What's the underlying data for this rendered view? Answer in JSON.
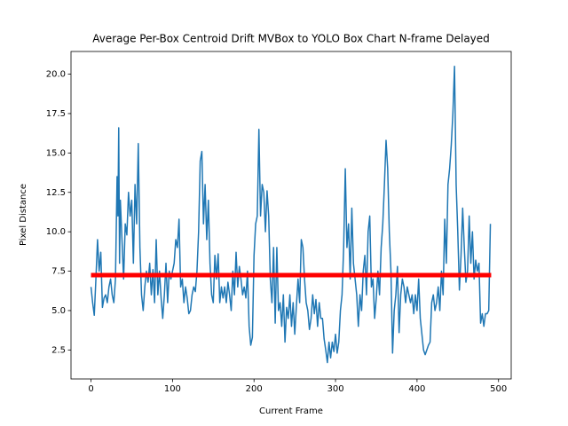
{
  "chart_data": {
    "type": "line",
    "title": "Average Per-Box Centroid Drift MVBox to YOLO Box Chart N-frame Delayed",
    "x_label": "Current Frame",
    "y_label": "Pixel Distance",
    "x": [
      0,
      2,
      4,
      6,
      8,
      10,
      12,
      14,
      16,
      18,
      20,
      22,
      24,
      26,
      28,
      30,
      32,
      33,
      34,
      35,
      36,
      38,
      40,
      42,
      44,
      46,
      48,
      50,
      52,
      54,
      56,
      58,
      60,
      62,
      64,
      66,
      68,
      70,
      72,
      74,
      76,
      78,
      80,
      82,
      84,
      86,
      88,
      90,
      92,
      94,
      96,
      98,
      100,
      102,
      104,
      106,
      108,
      110,
      112,
      114,
      116,
      118,
      120,
      122,
      124,
      126,
      128,
      130,
      132,
      134,
      136,
      138,
      140,
      142,
      144,
      146,
      148,
      150,
      152,
      154,
      156,
      158,
      160,
      162,
      164,
      166,
      168,
      170,
      172,
      174,
      176,
      178,
      180,
      182,
      184,
      186,
      188,
      190,
      192,
      194,
      196,
      198,
      200,
      202,
      204,
      206,
      208,
      210,
      212,
      214,
      216,
      218,
      220,
      222,
      224,
      226,
      228,
      230,
      232,
      234,
      236,
      238,
      240,
      242,
      244,
      246,
      248,
      250,
      252,
      254,
      256,
      258,
      260,
      262,
      264,
      266,
      268,
      270,
      272,
      274,
      276,
      278,
      280,
      282,
      284,
      286,
      288,
      290,
      292,
      294,
      296,
      298,
      300,
      302,
      304,
      306,
      308,
      310,
      312,
      314,
      316,
      318,
      320,
      322,
      324,
      326,
      328,
      330,
      332,
      334,
      336,
      338,
      340,
      342,
      344,
      346,
      348,
      350,
      352,
      354,
      356,
      358,
      360,
      362,
      364,
      366,
      368,
      370,
      372,
      374,
      376,
      378,
      380,
      382,
      384,
      386,
      388,
      390,
      392,
      394,
      396,
      398,
      400,
      402,
      404,
      406,
      408,
      410,
      412,
      414,
      416,
      418,
      420,
      422,
      424,
      426,
      428,
      430,
      432,
      434,
      436,
      438,
      440,
      442,
      444,
      446,
      448,
      450,
      452,
      454,
      456,
      458,
      460,
      462,
      464,
      466,
      468,
      470,
      472,
      474,
      476,
      478,
      480,
      482,
      484,
      486,
      488,
      490
    ],
    "series": [
      {
        "color": "#1f77b4",
        "width": 1.5,
        "values": [
          6.5,
          5.5,
          4.7,
          7,
          9.5,
          7.5,
          8.7,
          5.2,
          5.8,
          6,
          5.5,
          6.5,
          7,
          6,
          5.5,
          7,
          13.5,
          11,
          16.6,
          8,
          12,
          9.5,
          7,
          10.5,
          9.8,
          12.5,
          11,
          12,
          8,
          13,
          10.5,
          15.6,
          9,
          6,
          5,
          6.5,
          7.5,
          6.8,
          8,
          6,
          7.6,
          5.5,
          9.5,
          6,
          7.5,
          5.8,
          4.5,
          6,
          8,
          5.5,
          7.5,
          7,
          7.5,
          8,
          9.5,
          9,
          10.8,
          6.5,
          7,
          5.5,
          6.5,
          5.8,
          4.8,
          5,
          6,
          6.5,
          6.2,
          7.5,
          10,
          14.5,
          15.1,
          10.5,
          13,
          9.5,
          12,
          8,
          6,
          5.5,
          8.5,
          7,
          8.6,
          5.5,
          6.5,
          5.8,
          6.5,
          5.5,
          6.8,
          6,
          5,
          7.5,
          6,
          8.7,
          6.5,
          7.8,
          7,
          6,
          6.5,
          5.8,
          7.5,
          4,
          2.8,
          3.3,
          8.5,
          10.5,
          11,
          16.5,
          11,
          13,
          12.5,
          10,
          12.6,
          11,
          7,
          5.5,
          9,
          4.2,
          9,
          5,
          5.5,
          4,
          6,
          3,
          5.2,
          4.5,
          6,
          4,
          5.5,
          3.5,
          5.3,
          7,
          5.5,
          9.5,
          9,
          7,
          5.5,
          5,
          3.8,
          4.5,
          6,
          4.8,
          5.7,
          4,
          5.5,
          4.5,
          4.5,
          3.2,
          2.5,
          1.7,
          3,
          2,
          3,
          2.4,
          3.5,
          2.3,
          3,
          5,
          6,
          9,
          14,
          9,
          10.5,
          7,
          11.5,
          8,
          7,
          6,
          4,
          6,
          5,
          7.5,
          8.5,
          6,
          10,
          11,
          6.5,
          7,
          4.5,
          5.8,
          7.5,
          6,
          9,
          10.5,
          13,
          15.8,
          14,
          10,
          7.5,
          2.3,
          5,
          6,
          7.8,
          3.6,
          6,
          7,
          6.5,
          5.5,
          6.5,
          6,
          5.5,
          6,
          4.8,
          6,
          5,
          7,
          4.5,
          3.5,
          2.5,
          2.2,
          2.5,
          2.8,
          3,
          5.5,
          6,
          5,
          5.5,
          6.5,
          5,
          7.5,
          6,
          10.8,
          8,
          13,
          14,
          15.5,
          17.5,
          20.5,
          13,
          10,
          6.3,
          8.5,
          11.5,
          9,
          6.8,
          7.5,
          11,
          8,
          10,
          7,
          8.2,
          7.5,
          8,
          4.2,
          4.8,
          4,
          4.8,
          4.8,
          5,
          10.5
        ]
      },
      {
        "color": "#ff0000",
        "width": 5,
        "x": [
          0,
          491
        ],
        "values": [
          7.25,
          7.25
        ]
      }
    ],
    "xlim": [
      -24.55,
      515.55
    ],
    "xticks": [
      0,
      100,
      200,
      300,
      400,
      500
    ],
    "ylim": [
      0.66,
      21.44
    ],
    "yticks": [
      2.5,
      {
        "value": 5,
        "label": "5.0"
      },
      7.5,
      {
        "value": 10,
        "label": "10.0"
      },
      12.5,
      {
        "value": 15,
        "label": "15.0"
      },
      17.5,
      {
        "value": 20,
        "label": "20.0"
      }
    ]
  }
}
